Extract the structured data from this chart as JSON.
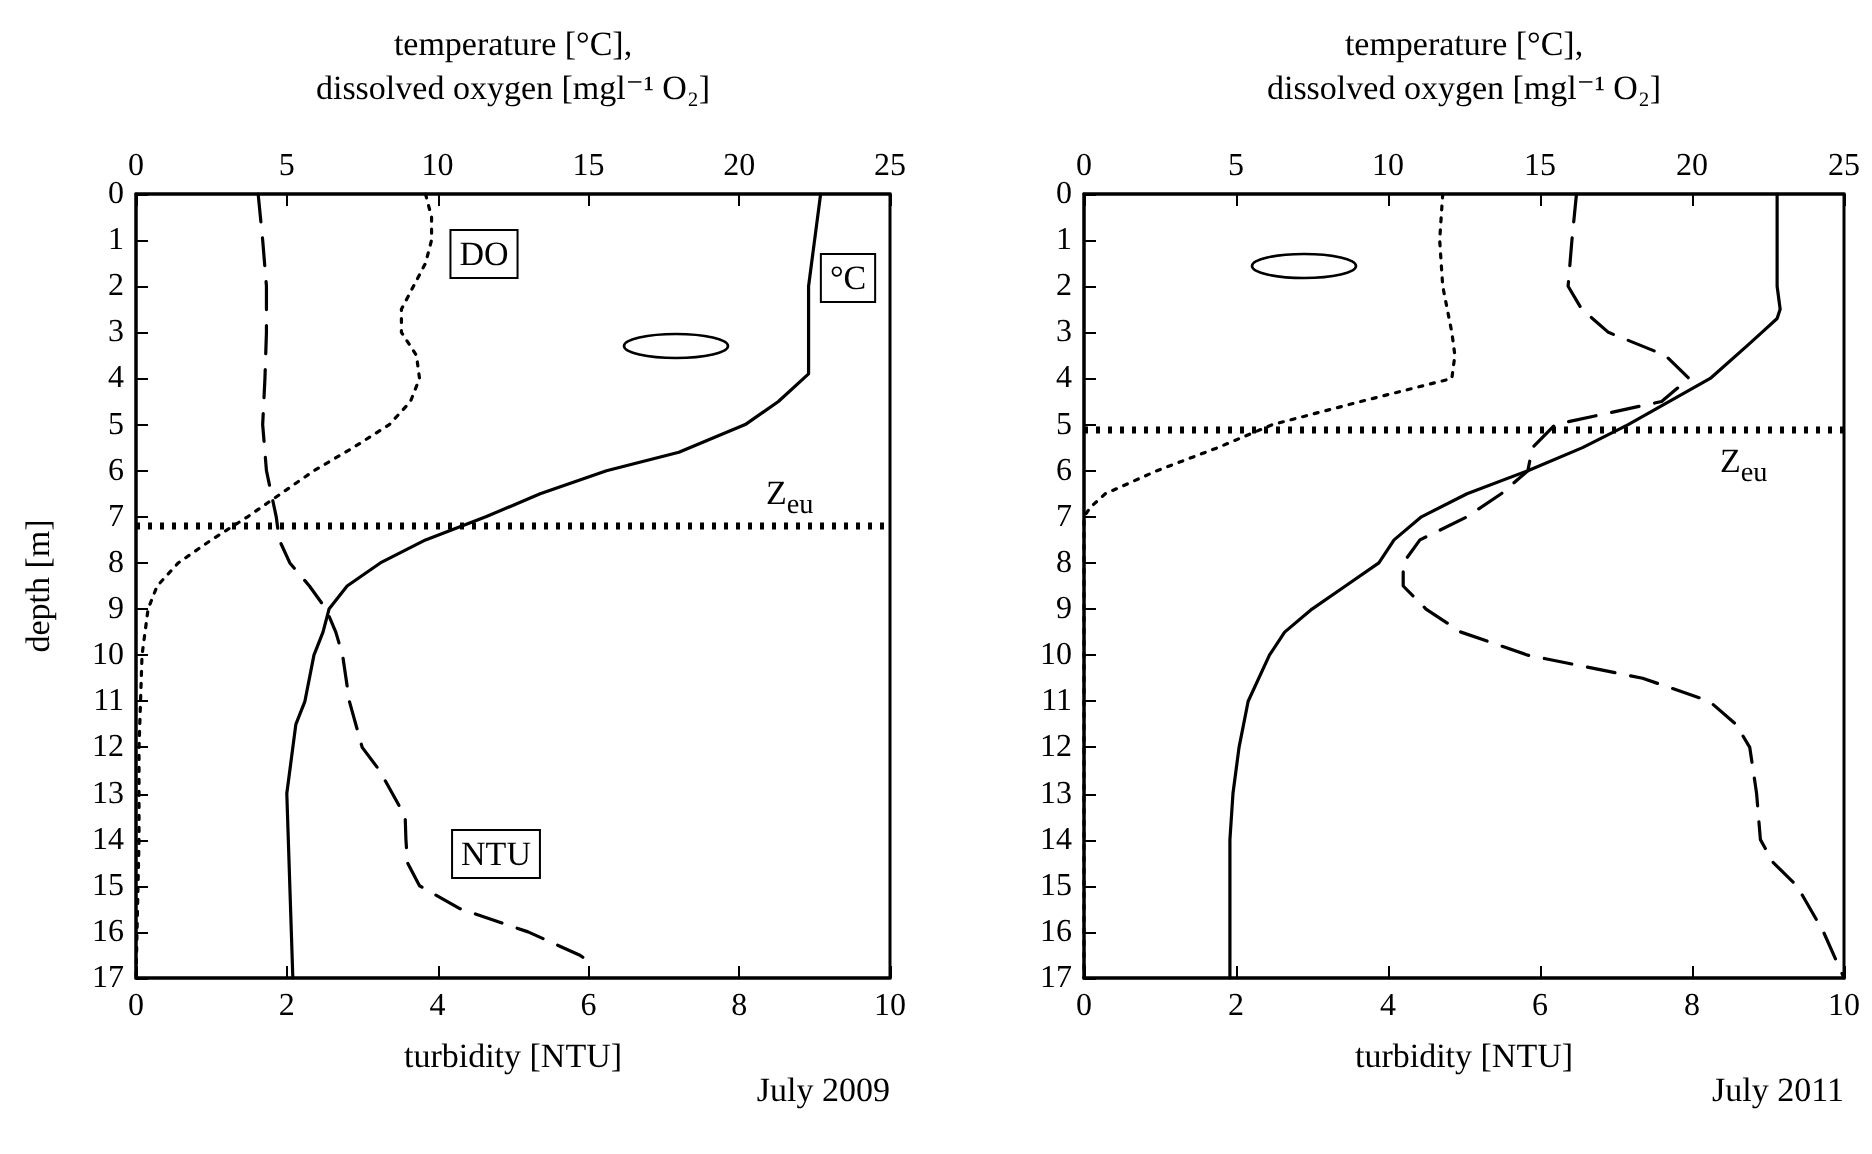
{
  "chart_data": [
    {
      "type": "line",
      "xlabel": "turbidity [NTU]",
      "x2label": "temperature [°C],\ndissolved oxygen [mgl⁻¹ O₂]",
      "ylabel": "depth [m]",
      "xlim": [
        0,
        10
      ],
      "xticks": [
        0,
        2,
        4,
        6,
        8,
        10
      ],
      "x2lim": [
        0,
        25
      ],
      "x2ticks": [
        0,
        5,
        10,
        15,
        20,
        25
      ],
      "ylim": [
        17,
        0
      ],
      "yticks": [
        0,
        1,
        2,
        3,
        4,
        5,
        6,
        7,
        8,
        9,
        10,
        11,
        12,
        13,
        14,
        15,
        16,
        17
      ],
      "grid": false,
      "legend": false,
      "marker": "none",
      "annotations": [
        "July 2009"
      ],
      "ref_lines": [
        {
          "axis": "y",
          "value": 7.2,
          "label": "Z$_{eu}$",
          "line_style": "dotted",
          "color": "#000000"
        }
      ],
      "series": [
        {
          "name": "°C",
          "color": "#000000",
          "axis": "x2",
          "line_style": "solid",
          "x": [
            22.7,
            22.5,
            22.3,
            22.3,
            22.3,
            21.3,
            20.2,
            18.0,
            15.6,
            13.4,
            11.6,
            9.6,
            8.1,
            7.0,
            6.4,
            6.2,
            5.9,
            5.6,
            5.3,
            5.2,
            5.0,
            5.1,
            5.2
          ],
          "values": [
            0,
            1,
            2,
            3,
            3.9,
            4.5,
            5,
            5.6,
            6,
            6.5,
            7,
            7.5,
            8,
            8.5,
            9,
            9.5,
            10,
            11,
            11.5,
            12,
            13,
            15,
            17
          ]
        },
        {
          "name": "DO",
          "color": "#000000",
          "axis": "x2",
          "line_style": "dotted",
          "x": [
            9.6,
            9.8,
            9.8,
            9.6,
            9.2,
            8.8,
            8.8,
            9.3,
            9.4,
            9.1,
            8.4,
            7.2,
            5.9,
            4.8,
            3.7,
            2.5,
            1.4,
            0.7,
            0.4,
            0.2,
            0.1,
            0.1,
            0
          ],
          "values": [
            0,
            0.5,
            1,
            1.5,
            2,
            2.5,
            3,
            3.5,
            4,
            4.5,
            5,
            5.5,
            6,
            6.5,
            7,
            7.5,
            8,
            8.5,
            9,
            10,
            12,
            14,
            17
          ]
        },
        {
          "name": "NTU",
          "color": "#000000",
          "line_style": "dashed",
          "x": [
            1.62,
            1.68,
            1.73,
            1.73,
            1.71,
            1.68,
            1.73,
            1.86,
            1.9,
            2.04,
            2.3,
            2.52,
            2.65,
            2.74,
            2.83,
            3.0,
            3.23,
            3.4,
            3.57,
            3.58,
            3.6,
            3.76,
            4.3,
            5.2,
            5.88,
            5.97
          ],
          "values": [
            0,
            1,
            2,
            3,
            4,
            5,
            6,
            7,
            7.5,
            8,
            8.5,
            9,
            9.5,
            10,
            11,
            12,
            12.5,
            13,
            13.5,
            14,
            14.5,
            15,
            15.5,
            16,
            16.5,
            16.6
          ]
        }
      ]
    },
    {
      "type": "line",
      "xlabel": "turbidity [NTU]",
      "x2label": "temperature [°C],\ndissolved oxygen [mgl⁻¹ O₂]",
      "xlim": [
        0,
        10
      ],
      "xticks": [
        0,
        2,
        4,
        6,
        8,
        10
      ],
      "x2lim": [
        0,
        25
      ],
      "x2ticks": [
        0,
        5,
        10,
        15,
        20,
        25
      ],
      "ylim": [
        17,
        0
      ],
      "yticks": [
        0,
        1,
        2,
        3,
        4,
        5,
        6,
        7,
        8,
        9,
        10,
        11,
        12,
        13,
        14,
        15,
        16,
        17
      ],
      "grid": false,
      "legend": false,
      "marker": "none",
      "annotations": [
        "July 2011"
      ],
      "ref_lines": [
        {
          "axis": "y",
          "value": 5.1,
          "label": "Z$_{eu}$",
          "line_style": "dotted",
          "color": "#000000"
        }
      ],
      "series": [
        {
          "color": "#000000",
          "axis": "x2",
          "line_style": "solid",
          "x": [
            22.8,
            22.8,
            22.8,
            22.9,
            22.8,
            22.3,
            21.8,
            20.6,
            17.9,
            16.4,
            14.6,
            12.6,
            11.1,
            10.2,
            9.7,
            8.6,
            7.5,
            6.6,
            6.1,
            5.4,
            5.1,
            4.9,
            4.8,
            4.8,
            4.8
          ],
          "values": [
            0,
            1,
            2,
            2.5,
            2.7,
            3,
            3.3,
            4,
            5,
            5.5,
            6,
            6.5,
            7,
            7.5,
            8,
            8.5,
            9,
            9.5,
            10,
            11,
            12,
            13,
            14,
            15,
            17
          ]
        },
        {
          "color": "#000000",
          "axis": "x2",
          "line_style": "dotted",
          "x": [
            11.8,
            11.7,
            11.8,
            12.1,
            12.2,
            12.1,
            9.1,
            6.2,
            4.4,
            2.4,
            0.7,
            0.2,
            0,
            0
          ],
          "values": [
            0,
            1,
            2,
            3,
            3.5,
            4,
            4.5,
            5,
            5.5,
            6,
            6.5,
            6.8,
            7,
            17
          ]
        },
        {
          "color": "#000000",
          "line_style": "dashed",
          "x": [
            6.48,
            6.42,
            6.37,
            6.55,
            6.9,
            7.65,
            7.96,
            7.6,
            6.2,
            5.9,
            5.84,
            5.49,
            5.04,
            4.42,
            4.2,
            4.2,
            4.5,
            4.96,
            5.84,
            7.35,
            8.23,
            8.58,
            8.76,
            8.85,
            8.9,
            9.07,
            9.38,
            9.73,
            10
          ],
          "values": [
            0,
            1,
            2,
            2.5,
            3,
            3.5,
            4,
            4.5,
            5,
            5.5,
            6,
            6.5,
            7,
            7.5,
            8,
            8.5,
            9,
            9.5,
            10,
            10.5,
            11,
            11.5,
            12,
            13,
            14,
            14.5,
            15,
            16,
            17
          ]
        }
      ]
    }
  ]
}
